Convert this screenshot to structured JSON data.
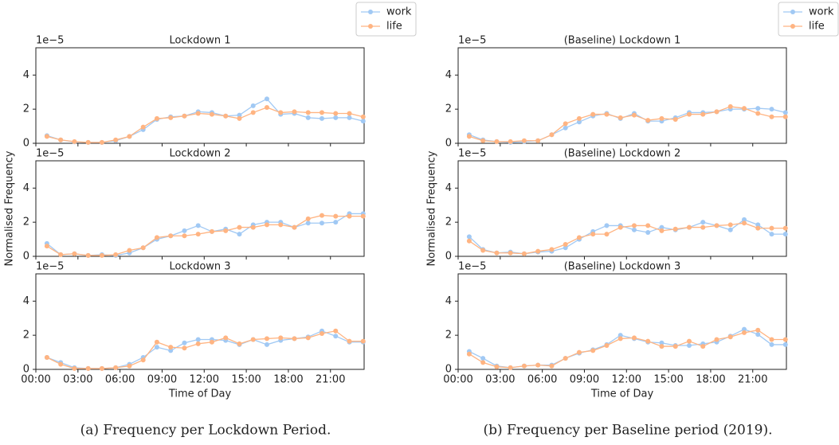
{
  "chart_data": [
    {
      "type": "line",
      "title": "Lockdown 1",
      "offset_text": "1e−5",
      "legend": true,
      "xtick_labels": false,
      "x": [
        0.79,
        1.77,
        2.75,
        3.73,
        4.71,
        5.69,
        6.67,
        7.65,
        8.63,
        9.61,
        10.59,
        11.57,
        12.55,
        13.53,
        14.51,
        15.49,
        16.47,
        17.45,
        18.43,
        19.41,
        20.39,
        21.37,
        22.35,
        23.33
      ],
      "xlim": [
        0,
        23.4
      ],
      "ylim": [
        0,
        5.6
      ],
      "yticks": [
        0,
        2,
        4
      ],
      "xticks": [
        {
          "value": 0,
          "label": "00:00"
        },
        {
          "value": 3,
          "label": "03:00"
        },
        {
          "value": 6,
          "label": "06:00"
        },
        {
          "value": 9,
          "label": "09:00"
        },
        {
          "value": 12,
          "label": "12:00"
        },
        {
          "value": 15,
          "label": "15:00"
        },
        {
          "value": 18,
          "label": "18:00"
        },
        {
          "value": 21,
          "label": "21:00"
        }
      ],
      "series": [
        {
          "name": "work",
          "color": "#a1c9f4",
          "values": [
            0.45,
            0.2,
            0.08,
            0.05,
            0.05,
            0.15,
            0.4,
            0.8,
            1.4,
            1.55,
            1.6,
            1.85,
            1.8,
            1.6,
            1.65,
            2.2,
            2.6,
            1.7,
            1.75,
            1.5,
            1.45,
            1.5,
            1.5,
            1.3
          ]
        },
        {
          "name": "life",
          "color": "#ffb482",
          "values": [
            0.4,
            0.2,
            0.1,
            0.05,
            0.05,
            0.2,
            0.4,
            0.95,
            1.45,
            1.5,
            1.6,
            1.75,
            1.7,
            1.6,
            1.45,
            1.8,
            2.1,
            1.8,
            1.85,
            1.8,
            1.8,
            1.75,
            1.75,
            1.55
          ]
        }
      ]
    },
    {
      "type": "line",
      "title": "Lockdown 2",
      "offset_text": "1e−5",
      "legend": false,
      "xtick_labels": false,
      "y_label": "Normalised Frequency",
      "x": [
        0.79,
        1.77,
        2.75,
        3.73,
        4.71,
        5.69,
        6.67,
        7.65,
        8.63,
        9.61,
        10.59,
        11.57,
        12.55,
        13.53,
        14.51,
        15.49,
        16.47,
        17.45,
        18.43,
        19.41,
        20.39,
        21.37,
        22.35,
        23.33
      ],
      "xlim": [
        0,
        23.4
      ],
      "ylim": [
        0,
        5.6
      ],
      "yticks": [
        0,
        2,
        4
      ],
      "xticks": [
        {
          "value": 0,
          "label": "00:00"
        },
        {
          "value": 3,
          "label": "03:00"
        },
        {
          "value": 6,
          "label": "06:00"
        },
        {
          "value": 9,
          "label": "09:00"
        },
        {
          "value": 12,
          "label": "12:00"
        },
        {
          "value": 15,
          "label": "15:00"
        },
        {
          "value": 18,
          "label": "18:00"
        },
        {
          "value": 21,
          "label": "21:00"
        }
      ],
      "series": [
        {
          "name": "work",
          "color": "#a1c9f4",
          "values": [
            0.75,
            0.1,
            0.15,
            0.05,
            0.1,
            0.05,
            0.2,
            0.5,
            1.0,
            1.2,
            1.5,
            1.8,
            1.45,
            1.6,
            1.3,
            1.85,
            2.0,
            2.0,
            1.7,
            1.95,
            1.95,
            2.0,
            2.5,
            2.5
          ]
        },
        {
          "name": "life",
          "color": "#ffb482",
          "values": [
            0.6,
            0.1,
            0.15,
            0.05,
            0.05,
            0.1,
            0.35,
            0.5,
            1.1,
            1.2,
            1.2,
            1.3,
            1.45,
            1.5,
            1.7,
            1.7,
            1.85,
            1.85,
            1.7,
            2.2,
            2.4,
            2.35,
            2.35,
            2.35
          ]
        }
      ]
    },
    {
      "type": "line",
      "title": "Lockdown 3",
      "offset_text": "1e−5",
      "legend": false,
      "xtick_labels": true,
      "x_label": "Time of Day",
      "x": [
        0.79,
        1.77,
        2.75,
        3.73,
        4.71,
        5.69,
        6.67,
        7.65,
        8.63,
        9.61,
        10.59,
        11.57,
        12.55,
        13.53,
        14.51,
        15.49,
        16.47,
        17.45,
        18.43,
        19.41,
        20.39,
        21.37,
        22.35,
        23.33
      ],
      "xlim": [
        0,
        23.4
      ],
      "ylim": [
        0,
        5.6
      ],
      "yticks": [
        0,
        2,
        4
      ],
      "xticks": [
        {
          "value": 0,
          "label": "00:00"
        },
        {
          "value": 3,
          "label": "03:00"
        },
        {
          "value": 6,
          "label": "06:00"
        },
        {
          "value": 9,
          "label": "09:00"
        },
        {
          "value": 12,
          "label": "12:00"
        },
        {
          "value": 15,
          "label": "15:00"
        },
        {
          "value": 18,
          "label": "18:00"
        },
        {
          "value": 21,
          "label": "21:00"
        }
      ],
      "series": [
        {
          "name": "work",
          "color": "#a1c9f4",
          "values": [
            0.7,
            0.4,
            0.1,
            0.05,
            0.05,
            0.1,
            0.3,
            0.7,
            1.3,
            1.1,
            1.55,
            1.75,
            1.75,
            1.7,
            1.45,
            1.75,
            1.45,
            1.7,
            1.8,
            1.9,
            2.25,
            1.95,
            1.6,
            1.6
          ]
        },
        {
          "name": "life",
          "color": "#ffb482",
          "values": [
            0.7,
            0.3,
            0.05,
            0.05,
            0.05,
            0.1,
            0.2,
            0.55,
            1.6,
            1.3,
            1.25,
            1.5,
            1.6,
            1.85,
            1.5,
            1.75,
            1.8,
            1.85,
            1.8,
            1.85,
            2.1,
            2.25,
            1.65,
            1.65
          ]
        }
      ]
    },
    {
      "type": "line",
      "title": "(Baseline) Lockdown 1",
      "offset_text": "1e−5",
      "legend": true,
      "xtick_labels": false,
      "x": [
        0.79,
        1.77,
        2.75,
        3.73,
        4.71,
        5.69,
        6.67,
        7.65,
        8.63,
        9.61,
        10.59,
        11.57,
        12.55,
        13.53,
        14.51,
        15.49,
        16.47,
        17.45,
        18.43,
        19.41,
        20.39,
        21.37,
        22.35,
        23.33
      ],
      "xlim": [
        0,
        23.4
      ],
      "ylim": [
        0,
        5.6
      ],
      "yticks": [
        0,
        2,
        4
      ],
      "xticks": [
        {
          "value": 0,
          "label": "00:00"
        },
        {
          "value": 3,
          "label": "03:00"
        },
        {
          "value": 6,
          "label": "06:00"
        },
        {
          "value": 9,
          "label": "09:00"
        },
        {
          "value": 12,
          "label": "12:00"
        },
        {
          "value": 15,
          "label": "15:00"
        },
        {
          "value": 18,
          "label": "18:00"
        },
        {
          "value": 21,
          "label": "21:00"
        }
      ],
      "series": [
        {
          "name": "work",
          "color": "#a1c9f4",
          "values": [
            0.5,
            0.2,
            0.1,
            0.05,
            0.1,
            0.15,
            0.5,
            0.9,
            1.25,
            1.6,
            1.75,
            1.45,
            1.75,
            1.3,
            1.3,
            1.5,
            1.8,
            1.8,
            1.85,
            2.0,
            2.0,
            2.05,
            2.0,
            1.8
          ]
        },
        {
          "name": "life",
          "color": "#ffb482",
          "values": [
            0.4,
            0.15,
            0.1,
            0.1,
            0.15,
            0.15,
            0.5,
            1.15,
            1.45,
            1.7,
            1.7,
            1.5,
            1.65,
            1.35,
            1.45,
            1.4,
            1.7,
            1.7,
            1.85,
            2.15,
            2.05,
            1.75,
            1.55,
            1.55
          ]
        }
      ]
    },
    {
      "type": "line",
      "title": "(Baseline) Lockdown 2",
      "offset_text": "1e−5",
      "legend": false,
      "xtick_labels": false,
      "y_label": "Normalised Frequency",
      "x": [
        0.79,
        1.77,
        2.75,
        3.73,
        4.71,
        5.69,
        6.67,
        7.65,
        8.63,
        9.61,
        10.59,
        11.57,
        12.55,
        13.53,
        14.51,
        15.49,
        16.47,
        17.45,
        18.43,
        19.41,
        20.39,
        21.37,
        22.35,
        23.33
      ],
      "xlim": [
        0,
        23.4
      ],
      "ylim": [
        0,
        5.6
      ],
      "yticks": [
        0,
        2,
        4
      ],
      "xticks": [
        {
          "value": 0,
          "label": "00:00"
        },
        {
          "value": 3,
          "label": "03:00"
        },
        {
          "value": 6,
          "label": "06:00"
        },
        {
          "value": 9,
          "label": "09:00"
        },
        {
          "value": 12,
          "label": "12:00"
        },
        {
          "value": 15,
          "label": "15:00"
        },
        {
          "value": 18,
          "label": "18:00"
        },
        {
          "value": 21,
          "label": "21:00"
        }
      ],
      "series": [
        {
          "name": "work",
          "color": "#a1c9f4",
          "values": [
            1.15,
            0.4,
            0.2,
            0.25,
            0.15,
            0.25,
            0.3,
            0.5,
            1.0,
            1.45,
            1.8,
            1.8,
            1.55,
            1.4,
            1.7,
            1.55,
            1.7,
            2.0,
            1.8,
            1.55,
            2.15,
            1.85,
            1.3,
            1.3
          ]
        },
        {
          "name": "life",
          "color": "#ffb482",
          "values": [
            0.9,
            0.35,
            0.2,
            0.2,
            0.15,
            0.3,
            0.4,
            0.7,
            1.1,
            1.3,
            1.3,
            1.7,
            1.8,
            1.8,
            1.5,
            1.6,
            1.7,
            1.7,
            1.8,
            1.85,
            1.95,
            1.65,
            1.65,
            1.65
          ]
        }
      ]
    },
    {
      "type": "line",
      "title": "(Baseline) Lockdown 3",
      "offset_text": "1e−5",
      "legend": false,
      "xtick_labels": true,
      "x_label": "Time of Day",
      "x": [
        0.79,
        1.77,
        2.75,
        3.73,
        4.71,
        5.69,
        6.67,
        7.65,
        8.63,
        9.61,
        10.59,
        11.57,
        12.55,
        13.53,
        14.51,
        15.49,
        16.47,
        17.45,
        18.43,
        19.41,
        20.39,
        21.37,
        22.35,
        23.33
      ],
      "xlim": [
        0,
        23.4
      ],
      "ylim": [
        0,
        5.6
      ],
      "yticks": [
        0,
        2,
        4
      ],
      "xticks": [
        {
          "value": 0,
          "label": "00:00"
        },
        {
          "value": 3,
          "label": "03:00"
        },
        {
          "value": 6,
          "label": "06:00"
        },
        {
          "value": 9,
          "label": "09:00"
        },
        {
          "value": 12,
          "label": "12:00"
        },
        {
          "value": 15,
          "label": "15:00"
        },
        {
          "value": 18,
          "label": "18:00"
        },
        {
          "value": 21,
          "label": "21:00"
        }
      ],
      "series": [
        {
          "name": "work",
          "color": "#a1c9f4",
          "values": [
            1.05,
            0.65,
            0.2,
            0.1,
            0.2,
            0.25,
            0.25,
            0.65,
            0.95,
            1.15,
            1.45,
            2.0,
            1.8,
            1.6,
            1.55,
            1.4,
            1.4,
            1.5,
            1.6,
            1.95,
            2.35,
            2.05,
            1.45,
            1.45
          ]
        },
        {
          "name": "life",
          "color": "#ffb482",
          "values": [
            0.9,
            0.4,
            0.15,
            0.1,
            0.2,
            0.25,
            0.2,
            0.65,
            1.0,
            1.1,
            1.4,
            1.8,
            1.85,
            1.65,
            1.35,
            1.35,
            1.65,
            1.35,
            1.75,
            1.9,
            2.15,
            2.3,
            1.75,
            1.75
          ]
        }
      ]
    }
  ],
  "captions": [
    "(a) Frequency per Lockdown Period.",
    "(b) Frequency per Baseline period (2019)."
  ]
}
